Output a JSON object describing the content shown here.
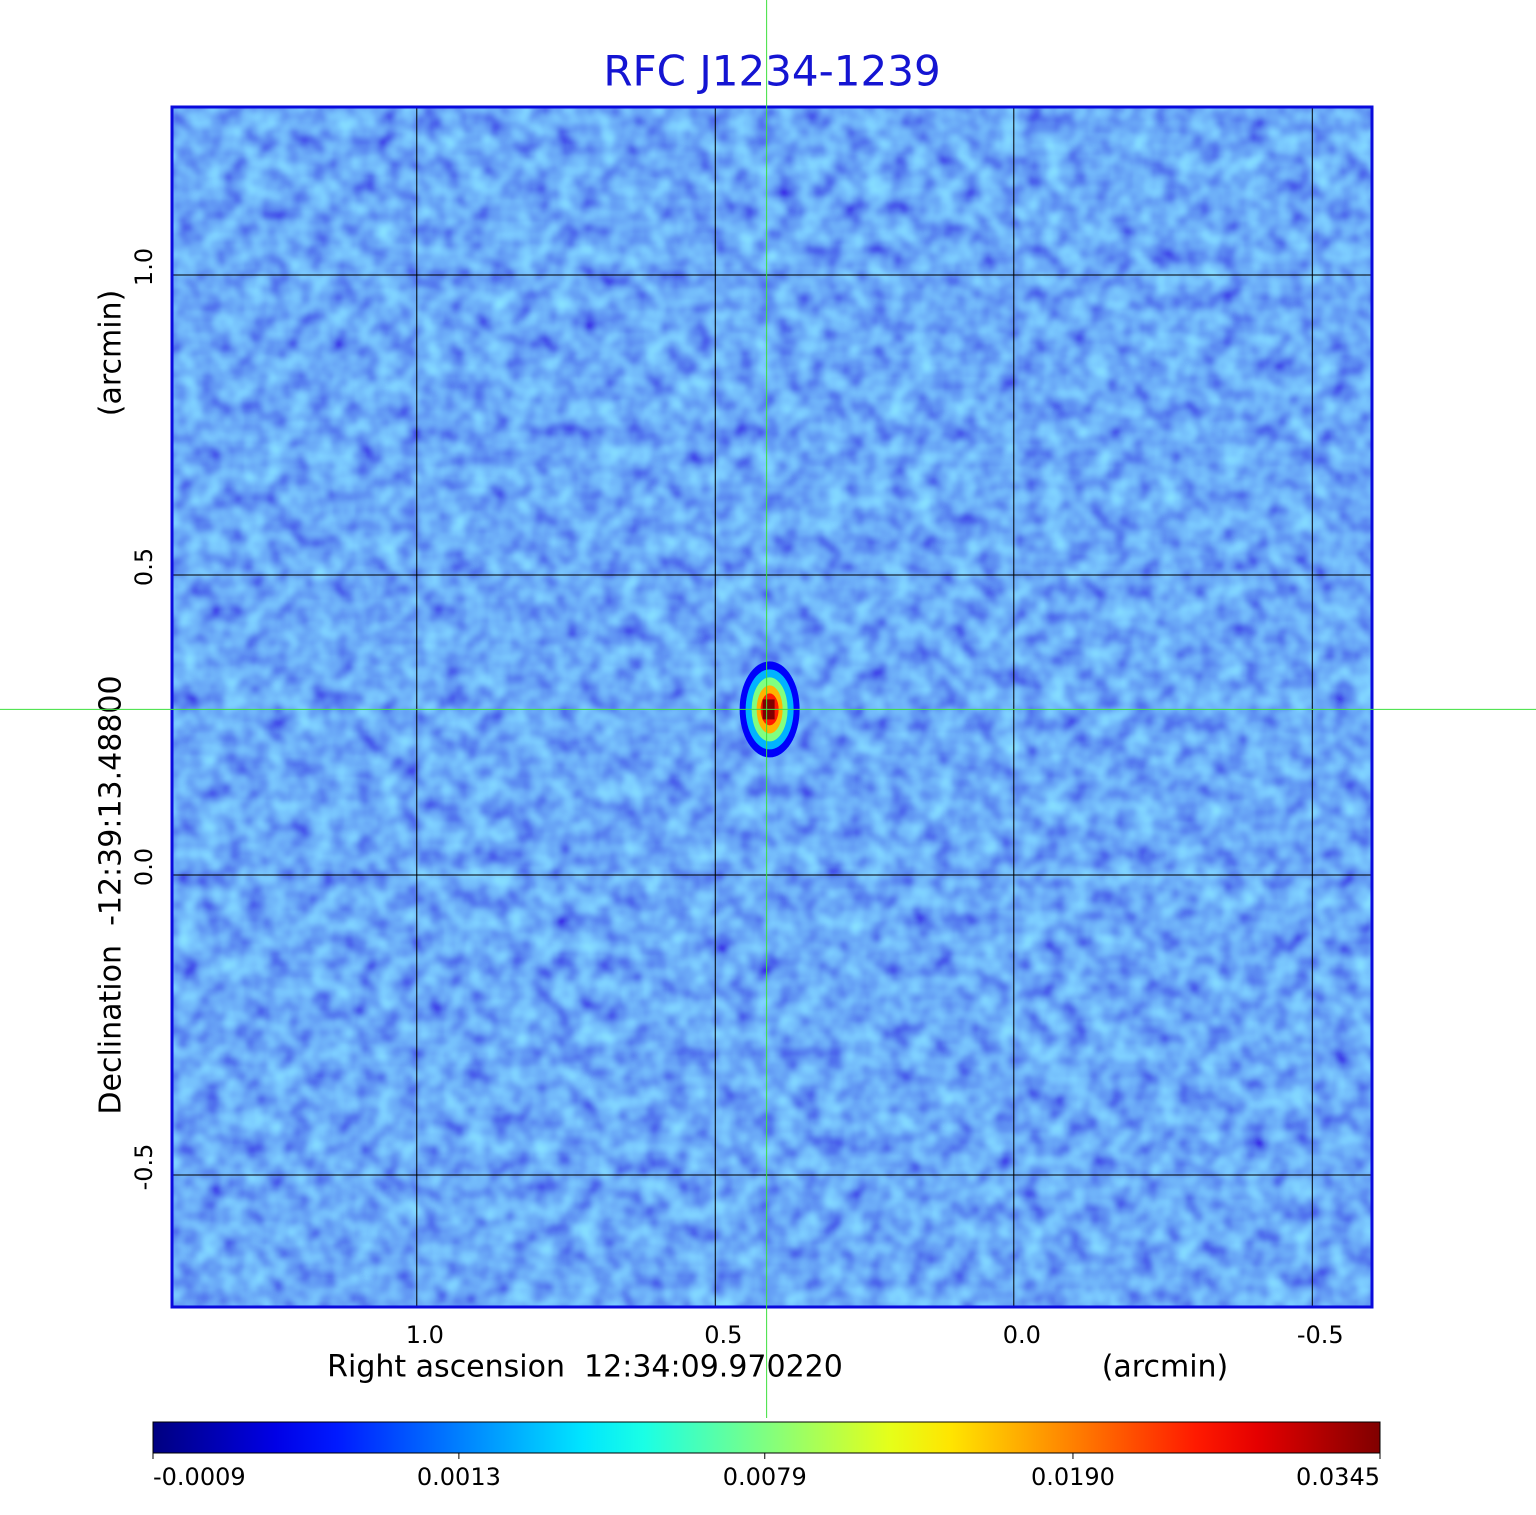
{
  "chart_data": {
    "type": "image",
    "title": "RFC J1234-1239",
    "xlabel": "Right ascension  12:34:09.970220",
    "xunit": "(arcmin)",
    "ylabel": "Declination  -12:39:13.48800",
    "yunit": "(arcmin)",
    "xlim": [
      1.41,
      -0.6
    ],
    "ylim": [
      -0.72,
      1.28
    ],
    "xticks": [
      {
        "value": 1,
        "label": "1.0"
      },
      0.5,
      {
        "value": 0,
        "label": "0.0"
      },
      -0.5
    ],
    "yticks": [
      -0.5,
      {
        "value": 0,
        "label": "0.0"
      },
      0.5,
      {
        "value": 1,
        "label": "1.0"
      }
    ],
    "grid": true,
    "crosshair": {
      "x": 0.414,
      "y": 0.276
    },
    "source": {
      "x": 0.414,
      "y": 0.276,
      "peak": 0.0345
    },
    "colorbar": {
      "colormap": "jet",
      "scale": "sqrt",
      "lim": [
        -0.0009,
        0.0345
      ],
      "ticks": [
        -0.0009,
        0.0013,
        0.0079,
        {
          "value": 0.019,
          "label": "0.0190"
        },
        0.0345
      ]
    }
  }
}
